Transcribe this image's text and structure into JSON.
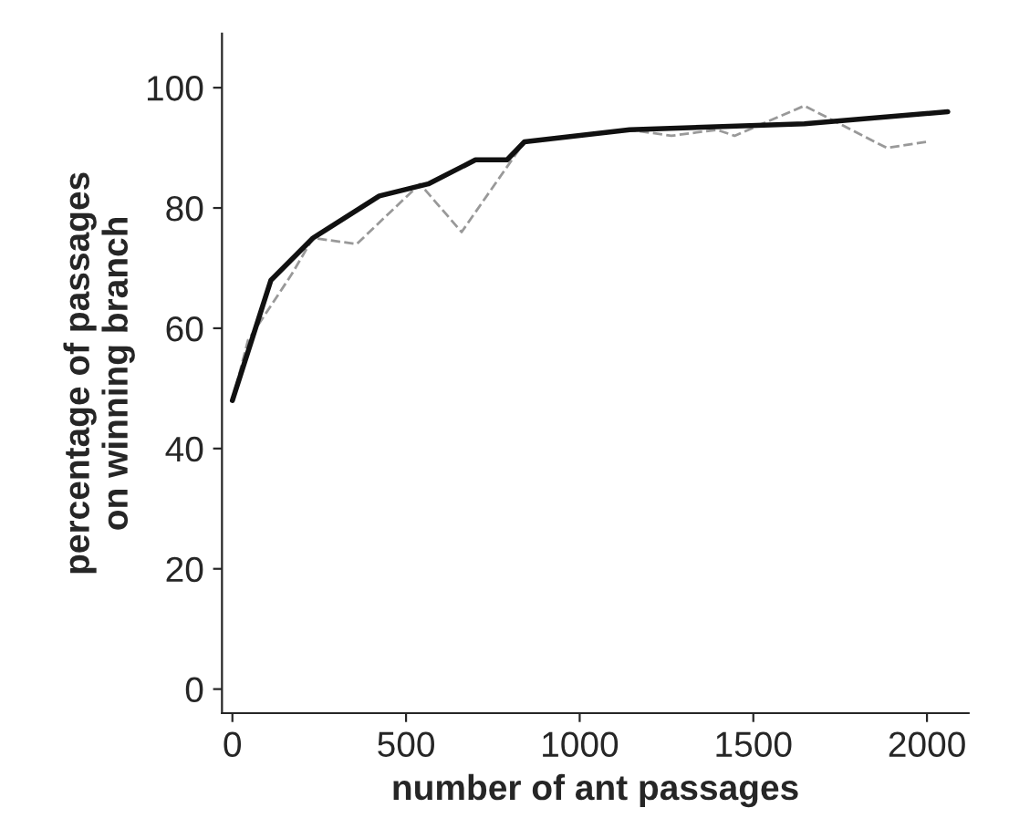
{
  "chart_data": {
    "type": "line",
    "xlabel": "number of ant passages",
    "ylabel": "percentage of passages\non winning branch",
    "xlim": [
      -30,
      2120
    ],
    "ylim": [
      -4,
      109
    ],
    "xticks": [
      0,
      500,
      1000,
      1500,
      2000
    ],
    "yticks": [
      0,
      20,
      40,
      60,
      80,
      100
    ],
    "grid": false,
    "legend": false,
    "series": [
      {
        "color": "#999999",
        "line_style": "dashed",
        "x": [
          0,
          45,
          171,
          232,
          358,
          540,
          660,
          841,
          1144,
          1264,
          1395,
          1446,
          1647,
          1748,
          1884,
          2000
        ],
        "values": [
          48,
          58,
          69,
          75,
          74,
          84,
          76,
          91,
          93,
          92,
          93,
          92,
          97,
          94,
          90,
          91
        ]
      },
      {
        "color": "#111111",
        "line_style": "solid",
        "x": [
          0,
          111,
          232,
          423,
          564,
          700,
          791,
          841,
          1144,
          1647,
          2060
        ],
        "values": [
          48,
          68,
          75,
          82,
          84,
          88,
          88,
          91,
          93,
          94,
          96
        ]
      }
    ]
  }
}
